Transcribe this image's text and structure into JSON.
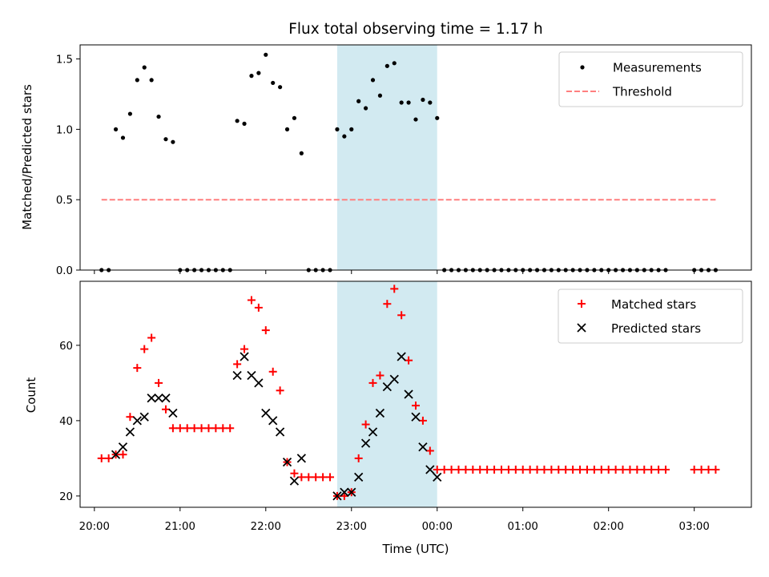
{
  "title": "Flux total observing time = 1.17 h",
  "highlight_colors": {
    "band": "#add8e6",
    "measurement": "#000000",
    "threshold": "#ff7f7f",
    "matched": "#ff0000",
    "predicted": "#000000"
  },
  "chart_data": [
    {
      "type": "scatter",
      "panel": "top",
      "ylabel": "Matched/Predicted stars",
      "xlabel": "",
      "ylim": [
        0,
        1.6
      ],
      "xlim": [
        "19:50",
        "03:40"
      ],
      "yticks": [
        0.0,
        0.5,
        1.0,
        1.5
      ],
      "ytick_labels": [
        "0.0",
        "0.5",
        "1.0",
        "1.5"
      ],
      "highlight_band": [
        "22:50",
        "00:00"
      ],
      "legend": {
        "position": "upper right",
        "entries": [
          "Measurements",
          "Threshold"
        ]
      },
      "series": [
        {
          "name": "Measurements",
          "marker": "dot",
          "x": [
            "20:05",
            "20:10",
            "20:15",
            "20:20",
            "20:25",
            "20:30",
            "20:35",
            "20:40",
            "20:45",
            "20:50",
            "20:55",
            "21:00",
            "21:05",
            "21:10",
            "21:15",
            "21:20",
            "21:25",
            "21:30",
            "21:35",
            "21:40",
            "21:45",
            "21:50",
            "21:55",
            "22:00",
            "22:05",
            "22:10",
            "22:15",
            "22:20",
            "22:25",
            "22:30",
            "22:35",
            "22:40",
            "22:45",
            "22:50",
            "22:55",
            "23:00",
            "23:05",
            "23:10",
            "23:15",
            "23:20",
            "23:25",
            "23:30",
            "23:35",
            "23:40",
            "23:45",
            "23:50",
            "23:55",
            "00:00",
            "00:05",
            "00:10",
            "00:15",
            "00:20",
            "00:25",
            "00:30",
            "00:35",
            "00:40",
            "00:45",
            "00:50",
            "00:55",
            "01:00",
            "01:05",
            "01:10",
            "01:15",
            "01:20",
            "01:25",
            "01:30",
            "01:35",
            "01:40",
            "01:45",
            "01:50",
            "01:55",
            "02:00",
            "02:05",
            "02:10",
            "02:15",
            "02:20",
            "02:25",
            "02:30",
            "02:35",
            "02:40",
            "03:00",
            "03:05",
            "03:10",
            "03:15"
          ],
          "y": [
            0,
            0,
            1.0,
            0.94,
            1.11,
            1.35,
            1.44,
            1.35,
            1.09,
            0.93,
            0.91,
            0,
            0,
            0,
            0,
            0,
            0,
            0,
            0,
            1.06,
            1.04,
            1.38,
            1.4,
            1.53,
            1.33,
            1.3,
            1.0,
            1.08,
            0.83,
            0,
            0,
            0,
            0,
            1.0,
            0.95,
            1.0,
            1.2,
            1.15,
            1.35,
            1.24,
            1.45,
            1.47,
            1.19,
            1.19,
            1.07,
            1.21,
            1.19,
            1.08,
            0,
            0,
            0,
            0,
            0,
            0,
            0,
            0,
            0,
            0,
            0,
            0,
            0,
            0,
            0,
            0,
            0,
            0,
            0,
            0,
            0,
            0,
            0,
            0,
            0,
            0,
            0,
            0,
            0,
            0,
            0,
            0,
            0,
            0,
            0,
            0
          ]
        },
        {
          "name": "Threshold",
          "marker": "dashed-line",
          "x": [
            "20:05",
            "03:15"
          ],
          "y": [
            0.5,
            0.5
          ]
        }
      ]
    },
    {
      "type": "scatter",
      "panel": "bottom",
      "ylabel": "Count",
      "xlabel": "Time (UTC)",
      "ylim": [
        17,
        77
      ],
      "xlim": [
        "19:50",
        "03:40"
      ],
      "yticks": [
        20,
        40,
        60
      ],
      "ytick_labels": [
        "20",
        "40",
        "60"
      ],
      "xticks": [
        "20:00",
        "21:00",
        "22:00",
        "23:00",
        "00:00",
        "01:00",
        "02:00",
        "03:00"
      ],
      "xtick_labels": [
        "20:00",
        "21:00",
        "22:00",
        "23:00",
        "00:00",
        "01:00",
        "02:00",
        "03:00"
      ],
      "highlight_band": [
        "22:50",
        "00:00"
      ],
      "legend": {
        "position": "upper right",
        "entries": [
          "Matched stars",
          "Predicted stars"
        ]
      },
      "series": [
        {
          "name": "Matched stars",
          "marker": "plus",
          "x": [
            "20:05",
            "20:10",
            "20:15",
            "20:20",
            "20:25",
            "20:30",
            "20:35",
            "20:40",
            "20:45",
            "20:50",
            "20:55",
            "21:00",
            "21:05",
            "21:10",
            "21:15",
            "21:20",
            "21:25",
            "21:30",
            "21:35",
            "21:40",
            "21:45",
            "21:50",
            "21:55",
            "22:00",
            "22:05",
            "22:10",
            "22:15",
            "22:20",
            "22:25",
            "22:30",
            "22:35",
            "22:40",
            "22:45",
            "22:50",
            "22:55",
            "23:00",
            "23:05",
            "23:10",
            "23:15",
            "23:20",
            "23:25",
            "23:30",
            "23:35",
            "23:40",
            "23:45",
            "23:50",
            "23:55",
            "00:00",
            "00:05",
            "00:10",
            "00:15",
            "00:20",
            "00:25",
            "00:30",
            "00:35",
            "00:40",
            "00:45",
            "00:50",
            "00:55",
            "01:00",
            "01:05",
            "01:10",
            "01:15",
            "01:20",
            "01:25",
            "01:30",
            "01:35",
            "01:40",
            "01:45",
            "01:50",
            "01:55",
            "02:00",
            "02:05",
            "02:10",
            "02:15",
            "02:20",
            "02:25",
            "02:30",
            "02:35",
            "02:40",
            "03:00",
            "03:05",
            "03:10",
            "03:15"
          ],
          "y": [
            30,
            30,
            31,
            31,
            41,
            54,
            59,
            62,
            50,
            43,
            38,
            38,
            38,
            38,
            38,
            38,
            38,
            38,
            38,
            55,
            59,
            72,
            70,
            64,
            53,
            48,
            29,
            26,
            25,
            25,
            25,
            25,
            25,
            20,
            20,
            21,
            30,
            39,
            50,
            52,
            71,
            75,
            68,
            56,
            44,
            40,
            32,
            27,
            27,
            27,
            27,
            27,
            27,
            27,
            27,
            27,
            27,
            27,
            27,
            27,
            27,
            27,
            27,
            27,
            27,
            27,
            27,
            27,
            27,
            27,
            27,
            27,
            27,
            27,
            27,
            27,
            27,
            27,
            27,
            27,
            27,
            27,
            27,
            27
          ]
        },
        {
          "name": "Predicted stars",
          "marker": "x",
          "x": [
            "20:15",
            "20:20",
            "20:25",
            "20:30",
            "20:35",
            "20:40",
            "20:45",
            "20:50",
            "20:55",
            "21:40",
            "21:45",
            "21:50",
            "21:55",
            "22:00",
            "22:05",
            "22:10",
            "22:15",
            "22:20",
            "22:25",
            "22:50",
            "22:55",
            "23:00",
            "23:05",
            "23:10",
            "23:15",
            "23:20",
            "23:25",
            "23:30",
            "23:35",
            "23:40",
            "23:45",
            "23:50",
            "23:55",
            "00:00"
          ],
          "y": [
            31,
            33,
            37,
            40,
            41,
            46,
            46,
            46,
            42,
            52,
            57,
            52,
            50,
            42,
            40,
            37,
            29,
            24,
            30,
            20,
            21,
            21,
            25,
            34,
            37,
            42,
            49,
            51,
            57,
            47,
            41,
            33,
            27,
            25
          ]
        }
      ]
    }
  ]
}
